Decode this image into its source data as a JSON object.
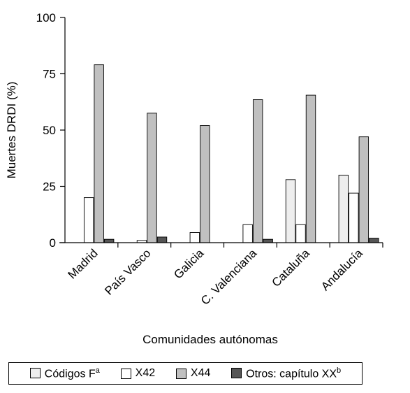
{
  "chart_data": {
    "type": "bar",
    "ylabel": "Muertes DRDI (%)",
    "xlabel": "Comunidades autónomas",
    "ylim": [
      0,
      100
    ],
    "yticks": [
      "0",
      "25",
      "50",
      "75",
      "100"
    ],
    "grid": false,
    "legend_position": "bottom",
    "categories": [
      "Madrid",
      "País Vasco",
      "Galicia",
      "C. Valenciana",
      "Cataluña",
      "Andalucía"
    ],
    "series": [
      {
        "name": "Códigos F",
        "name_sup": "a",
        "color": "#eeeeee",
        "values": [
          0,
          0,
          0,
          0,
          28,
          30
        ]
      },
      {
        "name": "X42",
        "name_sup": "",
        "color": "#ffffff",
        "values": [
          20,
          1,
          4.5,
          8,
          8,
          22
        ]
      },
      {
        "name": "X44",
        "name_sup": "",
        "color": "#c0c0c0",
        "values": [
          79,
          57.5,
          52,
          63.5,
          65.5,
          47
        ]
      },
      {
        "name": "Otros: capítulo XX",
        "name_sup": "b",
        "color": "#555555",
        "values": [
          1.5,
          2.5,
          0,
          1.5,
          0,
          2
        ]
      }
    ]
  }
}
